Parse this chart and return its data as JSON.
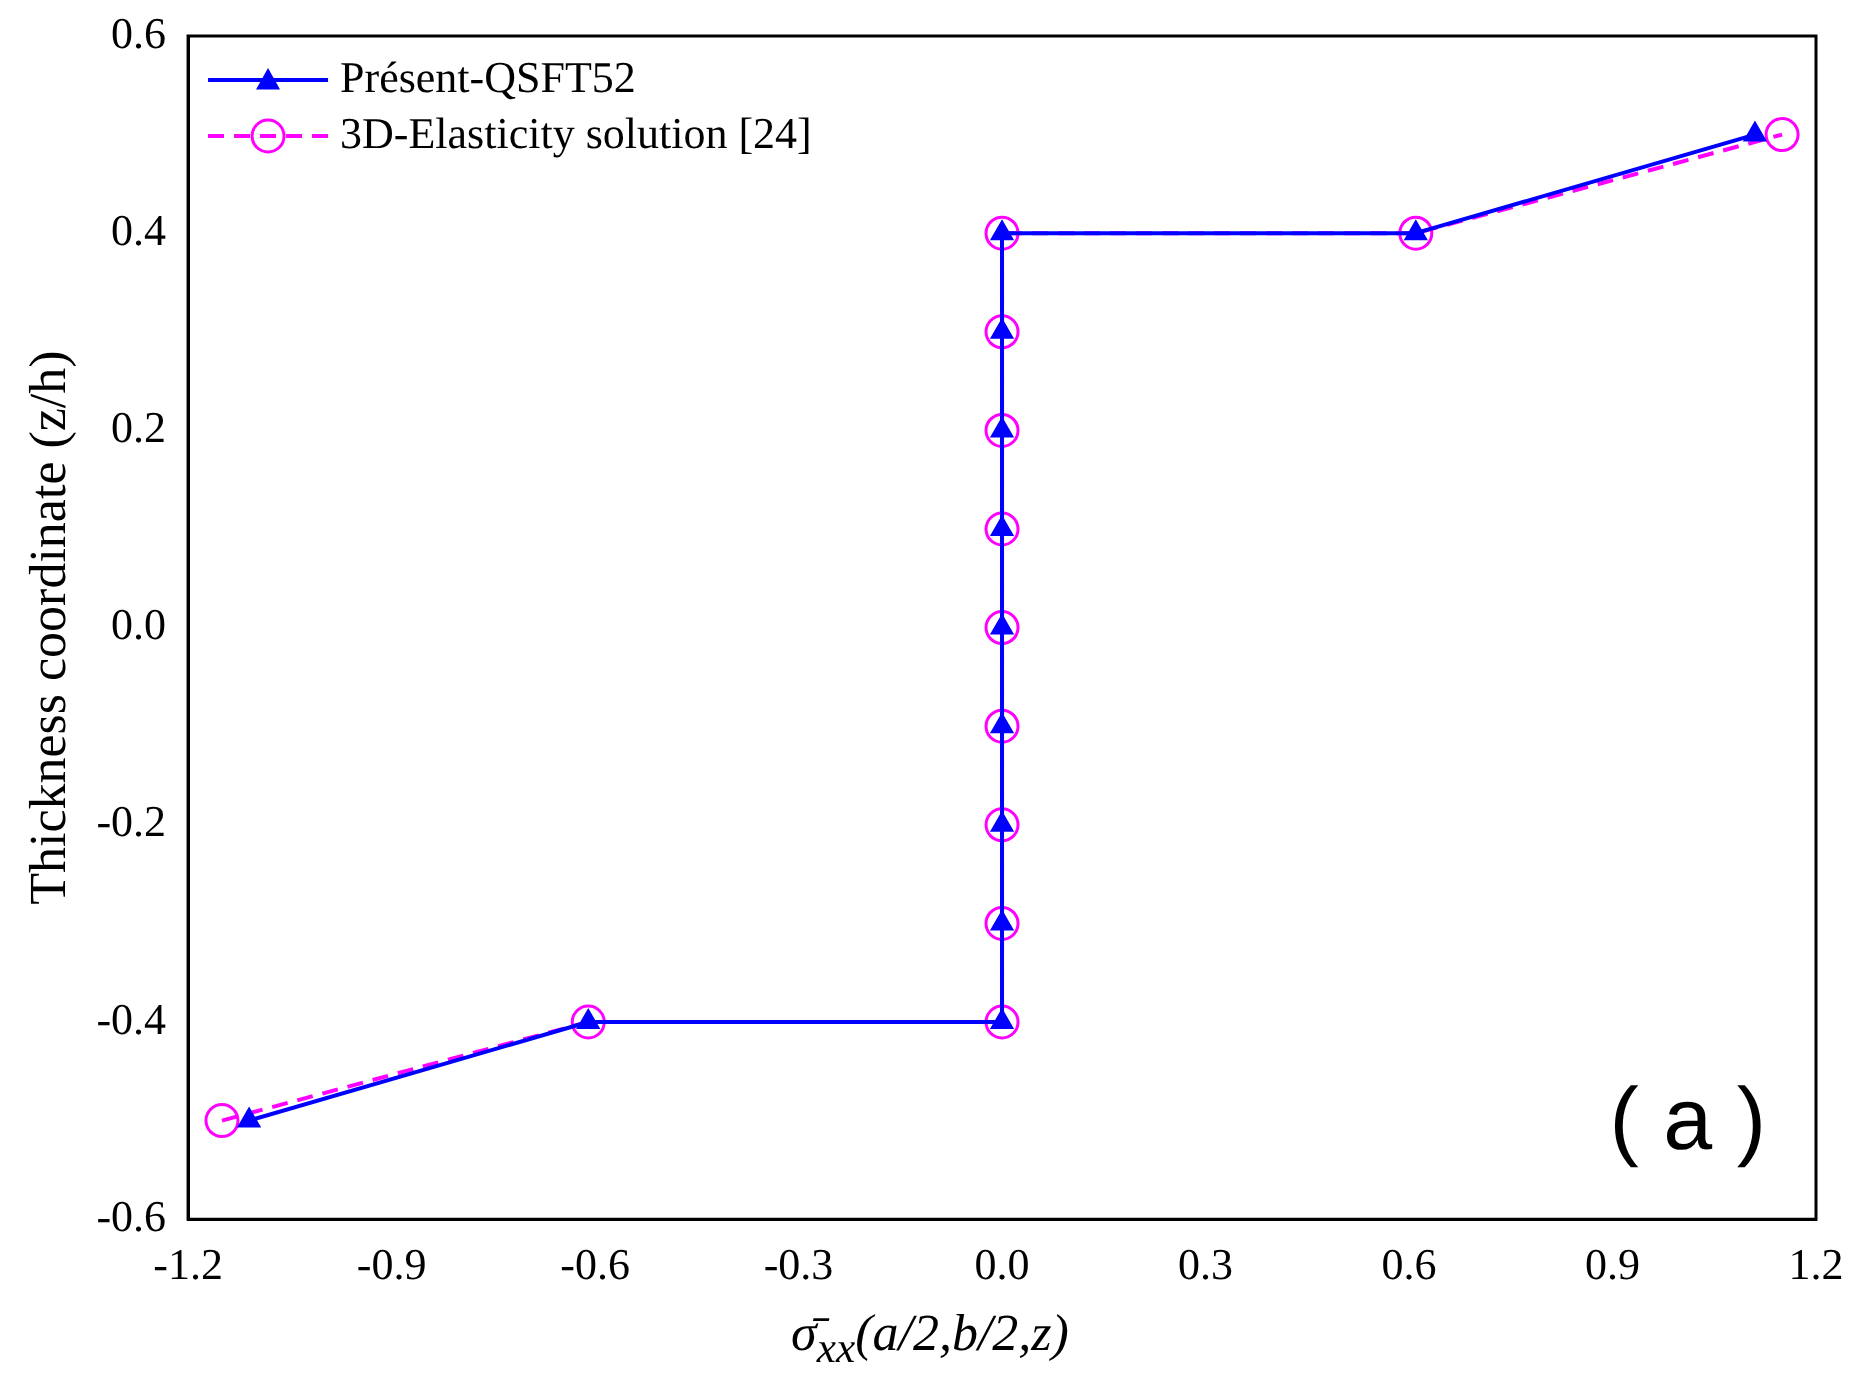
{
  "chart_data": {
    "type": "line",
    "xlabel": "σ̄$_{xx}$(a/2,b/2,z)",
    "ylabel": "Thickness coordinate (z/h)",
    "xlim": [
      -1.2,
      1.2
    ],
    "xticks": [
      -1.2,
      -0.9,
      -0.6,
      -0.3,
      {
        "value": 0,
        "label": "0.0"
      },
      0.3,
      0.6,
      0.9,
      1.2
    ],
    "ylim": [
      -0.6,
      0.6
    ],
    "yticks": [
      -0.6,
      -0.4,
      -0.2,
      {
        "value": 0,
        "label": "0.0"
      },
      0.2,
      0.4,
      0.6
    ],
    "grid": false,
    "legend": "top left",
    "annotations": [
      "( a )"
    ],
    "series": [
      {
        "name": "Présent-QSFT52",
        "color": "#0000ff",
        "marker": "triangle",
        "line_style": "solid",
        "x": [
          -1.11,
          -0.61,
          0,
          0,
          0,
          0,
          0,
          0,
          0,
          0,
          0,
          0.61,
          1.11
        ],
        "values": [
          -0.5,
          -0.4,
          -0.4,
          -0.3,
          -0.2,
          -0.1,
          0,
          0.1,
          0.2,
          0.3,
          0.4,
          0.4,
          0.5
        ]
      },
      {
        "name": "3D-Elasticity solution [24]",
        "color": "#ff00ff",
        "marker": "circle",
        "line_style": "dashed",
        "x": [
          -1.15,
          -0.61,
          0,
          0,
          0,
          0,
          0,
          0,
          0,
          0,
          0,
          0.61,
          1.15
        ],
        "values": [
          -0.5,
          -0.4,
          -0.4,
          -0.3,
          -0.2,
          -0.1,
          0,
          0.1,
          0.2,
          0.3,
          0.4,
          0.4,
          0.5
        ]
      }
    ]
  }
}
